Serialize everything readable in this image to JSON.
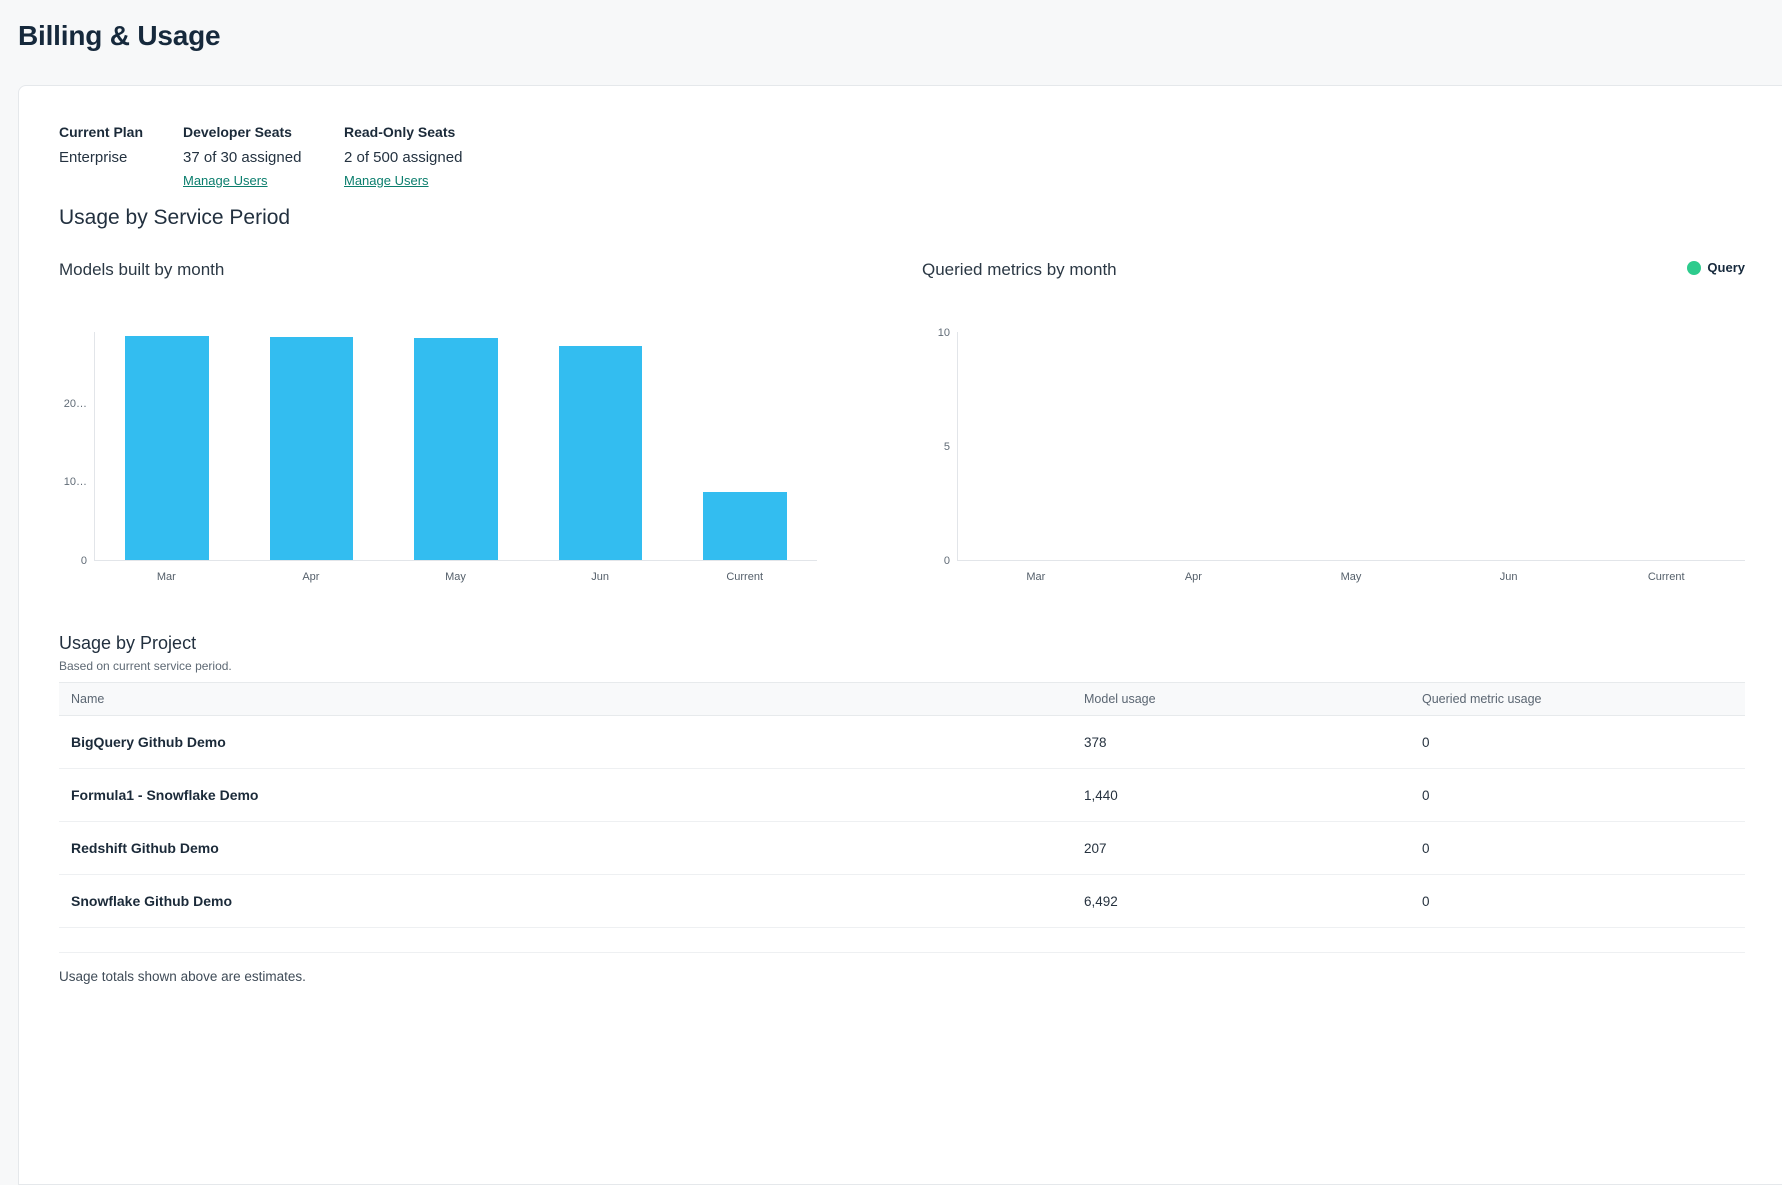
{
  "page": {
    "title": "Billing & Usage"
  },
  "plan_summary": {
    "current_plan": {
      "label": "Current Plan",
      "value": "Enterprise"
    },
    "developer_seats": {
      "label": "Developer Seats",
      "value": "37 of 30 assigned",
      "link": "Manage Users"
    },
    "read_only_seats": {
      "label": "Read-Only Seats",
      "value": "2 of 500 assigned",
      "link": "Manage Users"
    }
  },
  "service_period": {
    "heading": "Usage by Service Period"
  },
  "chart_data": [
    {
      "type": "bar",
      "title": "Models built by month",
      "categories": [
        "Mar",
        "Apr",
        "May",
        "Jun",
        "Current"
      ],
      "values": [
        28500,
        28400,
        28200,
        27200,
        8600
      ],
      "bar_color": "#33BDF0",
      "xlabel": "",
      "ylabel": "",
      "ylim": [
        0,
        29000
      ],
      "yticks": [
        {
          "label": "0",
          "value": 0
        },
        {
          "label": "10…",
          "value": 10000
        },
        {
          "label": "20…",
          "value": 20000
        }
      ],
      "grid": false,
      "legend": null
    },
    {
      "type": "bar",
      "title": "Queried metrics by month",
      "categories": [
        "Mar",
        "Apr",
        "May",
        "Jun",
        "Current"
      ],
      "series": [
        {
          "name": "Query",
          "values": [
            0,
            0,
            0,
            0,
            0
          ],
          "color": "#2DCB8D"
        }
      ],
      "xlabel": "",
      "ylabel": "",
      "ylim": [
        0,
        10
      ],
      "yticks": [
        {
          "label": "0",
          "value": 0
        },
        {
          "label": "5",
          "value": 5
        },
        {
          "label": "10",
          "value": 10
        }
      ],
      "grid": false,
      "legend": {
        "label": "Query",
        "color": "#2DCB8D",
        "position": "top-right"
      }
    }
  ],
  "project_usage": {
    "heading": "Usage by Project",
    "subtitle": "Based on current service period.",
    "columns": [
      "Name",
      "Model usage",
      "Queried metric usage"
    ],
    "rows": [
      {
        "name": "BigQuery Github Demo",
        "model_usage": "378",
        "queried_metric_usage": "0"
      },
      {
        "name": "Formula1 - Snowflake Demo",
        "model_usage": "1,440",
        "queried_metric_usage": "0"
      },
      {
        "name": "Redshift Github Demo",
        "model_usage": "207",
        "queried_metric_usage": "0"
      },
      {
        "name": "Snowflake Github Demo",
        "model_usage": "6,492",
        "queried_metric_usage": "0"
      }
    ],
    "footnote": "Usage totals shown above are estimates."
  },
  "colors": {
    "link_teal": "#0B7E6D",
    "bar_cyan": "#33BDF0",
    "legend_green": "#2DCB8D",
    "page_background": "#F7F8F9"
  }
}
